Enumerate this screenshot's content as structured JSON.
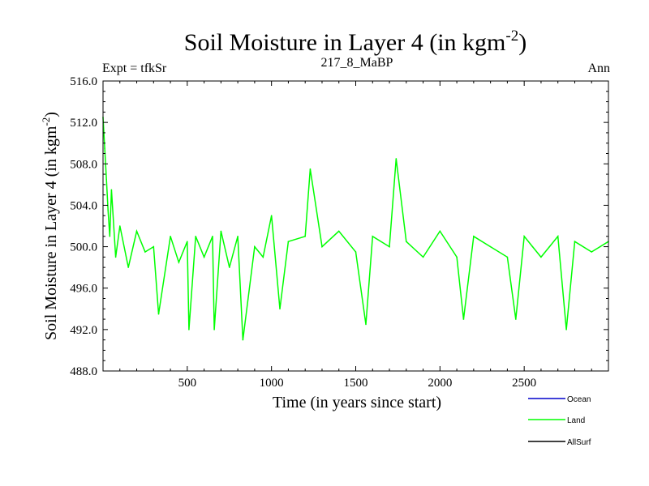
{
  "chart_data": {
    "type": "line",
    "title_main": "Soil Moisture in Layer 4 (in kgm",
    "title_sup": "-2",
    "title_close": ")",
    "subtitle_left": "Expt = tfkSr",
    "subtitle_center": "217_8_MaBP",
    "subtitle_right": "Ann",
    "xlabel": "Time (in years since start)",
    "ylabel_main": "Soil Moisture in Layer 4 (in kgm",
    "ylabel_sup": "-2",
    "ylabel_close": ")",
    "xlim": [
      0,
      3000
    ],
    "ylim": [
      488.0,
      516.0
    ],
    "xticks": [
      500,
      1000,
      1500,
      2000,
      2500
    ],
    "xtick_labels": [
      "500",
      "1000",
      "1500",
      "2000",
      "2500"
    ],
    "yticks": [
      488.0,
      492.0,
      496.0,
      500.0,
      504.0,
      508.0,
      512.0,
      516.0
    ],
    "ytick_labels": [
      "488.0",
      "492.0",
      "496.0",
      "500.0",
      "504.0",
      "508.0",
      "512.0",
      "516.0"
    ],
    "series": [
      {
        "name": "Land",
        "color": "#00ff00",
        "x": [
          0,
          10,
          20,
          30,
          40,
          50,
          75,
          100,
          150,
          200,
          250,
          300,
          330,
          400,
          450,
          500,
          510,
          550,
          600,
          650,
          660,
          700,
          750,
          800,
          830,
          900,
          950,
          1000,
          1050,
          1100,
          1200,
          1230,
          1300,
          1400,
          1500,
          1560,
          1600,
          1700,
          1740,
          1800,
          1900,
          2000,
          2100,
          2140,
          2200,
          2300,
          2400,
          2450,
          2500,
          2550,
          2600,
          2650,
          2700,
          2750,
          2800,
          2900,
          2950,
          3000
        ],
        "values": [
          512.5,
          509.5,
          506.5,
          503.5,
          501.0,
          505.5,
          499.0,
          502.0,
          498.0,
          501.5,
          499.5,
          500.0,
          493.5,
          501.0,
          498.5,
          500.5,
          492.0,
          501.0,
          499.0,
          501.0,
          492.0,
          501.5,
          498.0,
          501.0,
          491.0,
          500.0,
          499.0,
          503.0,
          494.0,
          500.5,
          501.0,
          507.5,
          500.0,
          501.5,
          499.5,
          492.5,
          501.0,
          500.0,
          508.5,
          500.5,
          499.0,
          501.5,
          499.0,
          493.0,
          501.0,
          500.0,
          499.0,
          493.0,
          501.0,
          500.0,
          499.0,
          500.0,
          501.0,
          492.0,
          500.5,
          499.5,
          500.0,
          500.5
        ]
      }
    ],
    "legend": {
      "placement": "bottom-right",
      "entries": [
        {
          "label": "Ocean",
          "color": "#0000cc"
        },
        {
          "label": "Land",
          "color": "#00ff00"
        },
        {
          "label": "AllSurf",
          "color": "#000000"
        }
      ]
    }
  }
}
